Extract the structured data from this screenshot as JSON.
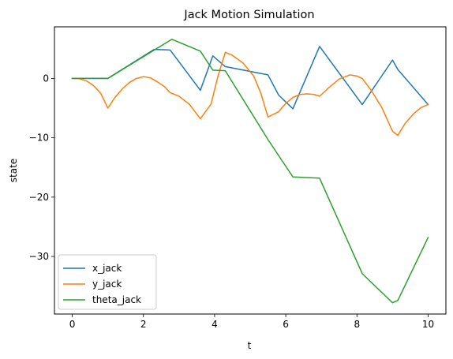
{
  "chart_data": {
    "type": "line",
    "title": "Jack Motion Simulation",
    "xlabel": "t",
    "ylabel": "state",
    "xlim": [
      -0.5,
      10.5
    ],
    "ylim": [
      -39.7,
      8.7
    ],
    "xticks": [
      0,
      2,
      4,
      6,
      8,
      10
    ],
    "yticks": [
      -30,
      -20,
      -10,
      0
    ],
    "grid": false,
    "legend": "lower-left",
    "series": [
      {
        "name": "x_jack",
        "color": "#1f77b4",
        "points": [
          [
            0,
            0
          ],
          [
            1,
            0
          ],
          [
            2.3,
            4.9
          ],
          [
            2.75,
            4.8
          ],
          [
            3.6,
            -2.0
          ],
          [
            3.95,
            3.8
          ],
          [
            4.3,
            2.0
          ],
          [
            5.5,
            0.6
          ],
          [
            5.8,
            -2.8
          ],
          [
            6.2,
            -5.1
          ],
          [
            6.95,
            5.4
          ],
          [
            8.15,
            -4.4
          ],
          [
            9,
            3.1
          ],
          [
            9.15,
            1.5
          ],
          [
            10,
            -4.4
          ]
        ]
      },
      {
        "name": "y_jack",
        "color": "#ff7f0e",
        "points": [
          [
            0,
            0
          ],
          [
            0.2,
            -0.05
          ],
          [
            0.4,
            -0.4
          ],
          [
            0.6,
            -1.2
          ],
          [
            0.8,
            -2.5
          ],
          [
            1,
            -5.0
          ],
          [
            1.2,
            -3.2
          ],
          [
            1.4,
            -1.8
          ],
          [
            1.6,
            -0.7
          ],
          [
            1.8,
            0.0
          ],
          [
            2,
            0.3
          ],
          [
            2.2,
            0.1
          ],
          [
            2.4,
            -0.6
          ],
          [
            2.6,
            -1.4
          ],
          [
            2.75,
            -2.4
          ],
          [
            3,
            -3.0
          ],
          [
            3.3,
            -4.4
          ],
          [
            3.6,
            -6.8
          ],
          [
            3.9,
            -4.3
          ],
          [
            4.1,
            0.5
          ],
          [
            4.3,
            4.4
          ],
          [
            4.5,
            3.9
          ],
          [
            4.8,
            2.6
          ],
          [
            5.1,
            0.4
          ],
          [
            5.3,
            -2.5
          ],
          [
            5.5,
            -6.5
          ],
          [
            5.8,
            -5.6
          ],
          [
            6.0,
            -4.2
          ],
          [
            6.2,
            -3.2
          ],
          [
            6.4,
            -2.7
          ],
          [
            6.6,
            -2.6
          ],
          [
            6.8,
            -2.7
          ],
          [
            6.95,
            -3.0
          ],
          [
            7.2,
            -1.6
          ],
          [
            7.5,
            -0.1
          ],
          [
            7.8,
            0.6
          ],
          [
            8.0,
            0.4
          ],
          [
            8.15,
            0.0
          ],
          [
            8.4,
            -2.0
          ],
          [
            8.7,
            -4.9
          ],
          [
            9.0,
            -8.9
          ],
          [
            9.15,
            -9.6
          ],
          [
            9.35,
            -7.6
          ],
          [
            9.6,
            -5.9
          ],
          [
            9.8,
            -4.9
          ],
          [
            10,
            -4.4
          ]
        ]
      },
      {
        "name": "theta_jack",
        "color": "#2ca02c",
        "points": [
          [
            0,
            0
          ],
          [
            1,
            0
          ],
          [
            2.8,
            6.6
          ],
          [
            3.6,
            4.6
          ],
          [
            3.95,
            1.4
          ],
          [
            4.3,
            1.3
          ],
          [
            5.5,
            -10.3
          ],
          [
            6.2,
            -16.6
          ],
          [
            6.95,
            -16.8
          ],
          [
            8.15,
            -32.9
          ],
          [
            9,
            -37.8
          ],
          [
            9.15,
            -37.4
          ],
          [
            10,
            -26.8
          ]
        ]
      }
    ]
  }
}
